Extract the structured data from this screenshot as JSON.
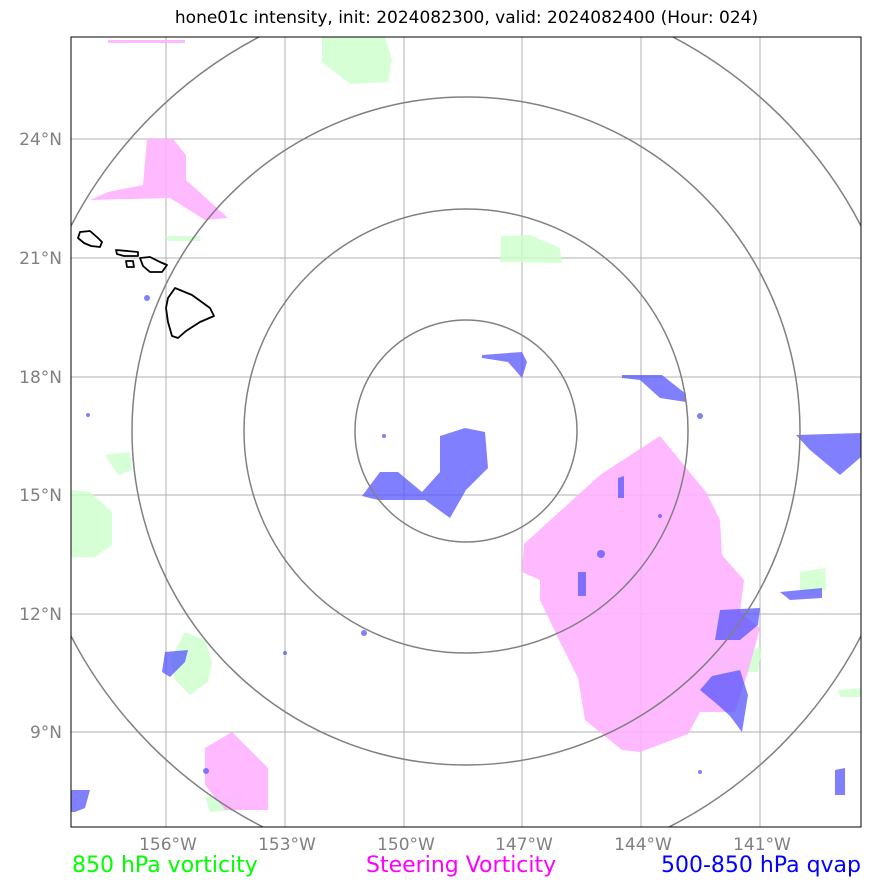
{
  "title": "hone01c intensity, init: 2024082300, valid: 2024082400 (Hour: 024)",
  "lat_ticks": [
    "24°N",
    "21°N",
    "18°N",
    "15°N",
    "12°N",
    "9°N"
  ],
  "lon_ticks": [
    "156°W",
    "153°W",
    "150°W",
    "147°W",
    "144°W",
    "141°W"
  ],
  "legend": {
    "vorticity_850": "850 hPa vorticity",
    "steering_vorticity": "Steering Vorticity",
    "qvap_500_850": "500-850 hPa qvap"
  },
  "colors": {
    "vorticity_850": "#00ff00",
    "steering_vorticity": "#ff00ff",
    "qvap_500_850": "#0000ff",
    "range_rings": "#808080",
    "gridlines": "#b0b0b0",
    "coastline": "#000000"
  },
  "map": {
    "region": "Central North Pacific, east of Hawaii",
    "lat_range": [
      "~7°N",
      "~26°N"
    ],
    "lon_range": [
      "~158°W",
      "~139°W"
    ],
    "range_rings_count": 4,
    "storm_center": {
      "lat": 16.7,
      "lon": -148.5
    }
  }
}
